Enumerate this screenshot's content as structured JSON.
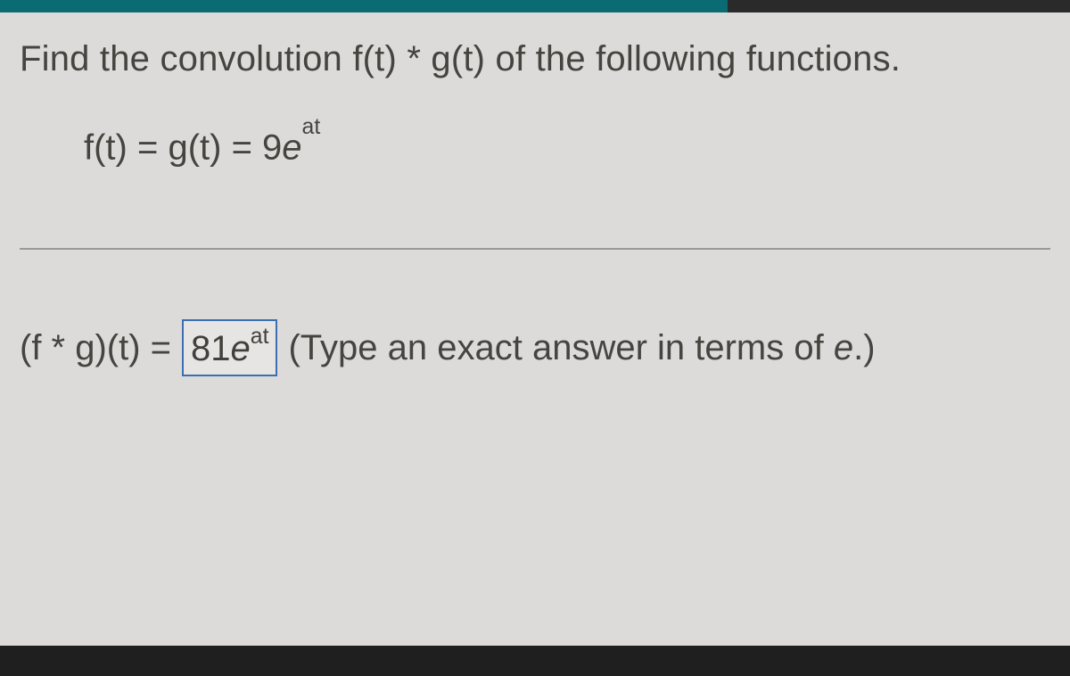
{
  "colors": {
    "page_bg": "#dcdbda",
    "text": "#47433f",
    "divider": "#9c9893",
    "input_border": "#3b6fb0",
    "top_teal": "#0a6b72",
    "top_dark": "#2a2a2a",
    "bottom_bar": "#1f1f1f"
  },
  "question": {
    "prefix": "Find the convolution f(t) ",
    "star": "*",
    "suffix": " g(t) of the following functions."
  },
  "given": {
    "lhs": "f(t) = g(t) = 9",
    "e": "e",
    "exp": "at"
  },
  "answer": {
    "lhs_a": "(f ",
    "star": "*",
    "lhs_b": " g)(t) = ",
    "box_num": "81",
    "box_e": "e",
    "box_exp": "at",
    "hint_a": "(Type an exact answer in terms of ",
    "hint_e": "e",
    "hint_b": ".)"
  }
}
